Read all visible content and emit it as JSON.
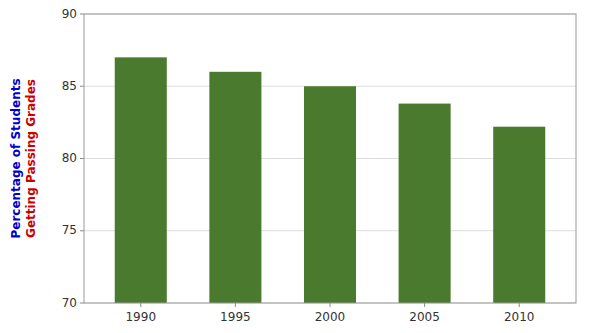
{
  "chart_data": {
    "type": "bar",
    "categories": [
      "1990",
      "1995",
      "2000",
      "2005",
      "2010"
    ],
    "values": [
      87,
      86,
      85,
      83.8,
      82.2
    ],
    "color": "#4a7a2e",
    "ylabel": [
      {
        "text": "Percentage of Students",
        "color": "#0000cc"
      },
      {
        "text": "Getting Passing Grades",
        "color": "#cc0000"
      }
    ],
    "ylim": [
      70,
      90
    ],
    "yticks": [
      70,
      75,
      80,
      85,
      90
    ],
    "grid": true
  }
}
